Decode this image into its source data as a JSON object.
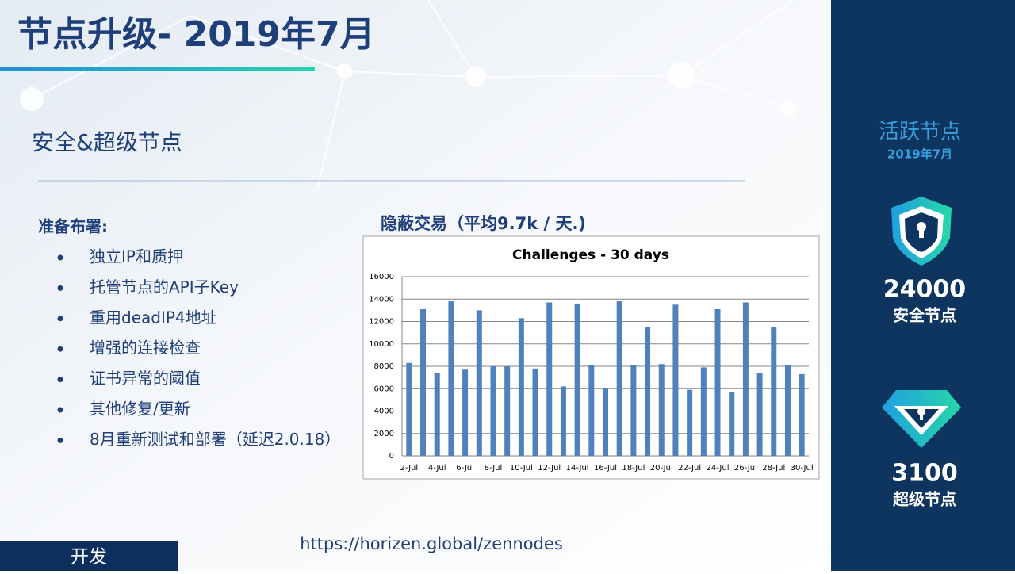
{
  "header": {
    "title": "节点升级- 2019年7月",
    "subtitle": "安全&超级节点"
  },
  "list": {
    "heading": "准备布署:",
    "items": [
      "独立IP和质押",
      "托管节点的API子Key",
      "重用deadIP4地址",
      "增强的连接检查",
      "证书异常的阈值",
      "其他修复/更新",
      "8月重新测试和部署（延迟2.0.18）"
    ]
  },
  "chart_heading": "隐蔽交易（平均9.7k / 天.)",
  "chart_data": {
    "type": "bar",
    "title": "Challenges - 30 days",
    "categories": [
      "2-Jul",
      null,
      "4-Jul",
      null,
      "6-Jul",
      null,
      "8-Jul",
      null,
      "10-Jul",
      null,
      "12-Jul",
      null,
      "14-Jul",
      null,
      "16-Jul",
      null,
      "18-Jul",
      null,
      "20-Jul",
      null,
      "22-Jul",
      null,
      "24-Jul",
      null,
      "26-Jul",
      null,
      "28-Jul",
      null,
      "30-Jul"
    ],
    "values": [
      8300,
      13100,
      7400,
      13800,
      7700,
      13000,
      8000,
      8000,
      12300,
      7800,
      13700,
      6200,
      13600,
      8100,
      6000,
      13800,
      8100,
      11500,
      8200,
      13500,
      5900,
      7900,
      13100,
      5700,
      13700,
      7400,
      11500,
      8100,
      7300
    ],
    "color": "#4f81bd",
    "ylim": [
      0,
      16000
    ],
    "yticks": [
      0,
      2000,
      4000,
      6000,
      8000,
      10000,
      12000,
      14000,
      16000
    ],
    "grid": true
  },
  "url": "https://horizen.global/zennodes",
  "footer": "开发",
  "sidebar": {
    "heading": "活跃节点",
    "date": "2019年7月",
    "secure_count": 24000,
    "secure_label": "安全节点",
    "super_count": 3100,
    "super_label": "超级节点"
  }
}
